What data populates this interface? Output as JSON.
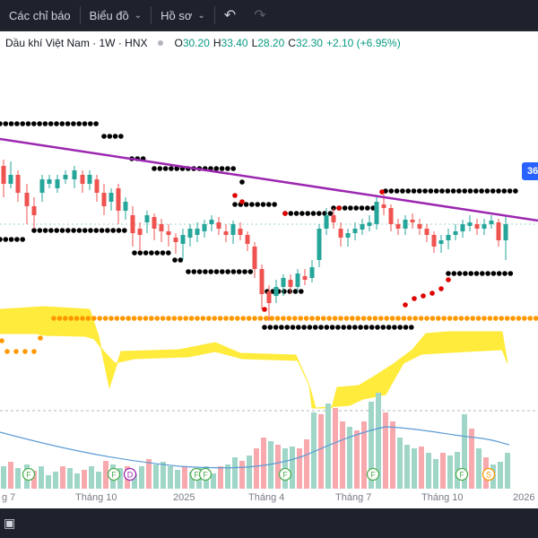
{
  "toolbar": {
    "indicators_label": "Các chỉ báo",
    "chart_label": "Biểu đồ",
    "profile_label": "Hồ sơ"
  },
  "legend": {
    "symbol": "Dầu khí Việt Nam · 1W · HNX",
    "open_key": "O",
    "open": "30.20",
    "high_key": "H",
    "high": "33.40",
    "low_key": "L",
    "low": "28.20",
    "close_key": "C",
    "close": "32.30",
    "change": "+2.10 (+6.95%)",
    "up_color": "#089981",
    "down_color": "#f23645"
  },
  "price_tag": "36",
  "time_axis": [
    "g 7",
    "Tháng 10",
    "2025",
    "Tháng 4",
    "Tháng 7",
    "Tháng 10",
    "2026"
  ],
  "event_markers": [
    "F",
    "F",
    "D",
    "F",
    "F",
    "F",
    "F",
    "F",
    "S"
  ],
  "colors": {
    "trendline": "#9c27b0",
    "dots": "#000000",
    "red_dots": "#e00000",
    "orange_dots": "#ff9800",
    "cloud": "#ffeb3b",
    "volume_up": "#9fd6c8",
    "volume_down": "#f7a9ae",
    "volume_ma": "#5b9bd5"
  },
  "chart_data": {
    "type": "candlestick",
    "x": [
      "2024-06",
      "2024-07",
      "2024-08",
      "2024-09",
      "2024-10",
      "2024-11",
      "2024-12",
      "2025-01",
      "2025-02",
      "2025-03",
      "2025-04",
      "2025-05",
      "2025-06",
      "2025-07",
      "2025-08",
      "2025-09",
      "2025-10",
      "2025-11",
      "2025-12"
    ],
    "close": [
      33.5,
      32.8,
      33.2,
      31.6,
      30.8,
      29.6,
      29.1,
      28.7,
      29.6,
      28.9,
      24.5,
      27.4,
      30.6,
      30.8,
      31.9,
      30.6,
      29.2,
      30.6,
      32.3
    ],
    "last": {
      "open": 30.2,
      "high": 33.4,
      "low": 28.2,
      "close": 32.3,
      "change": 2.1,
      "change_pct": 6.95
    }
  }
}
